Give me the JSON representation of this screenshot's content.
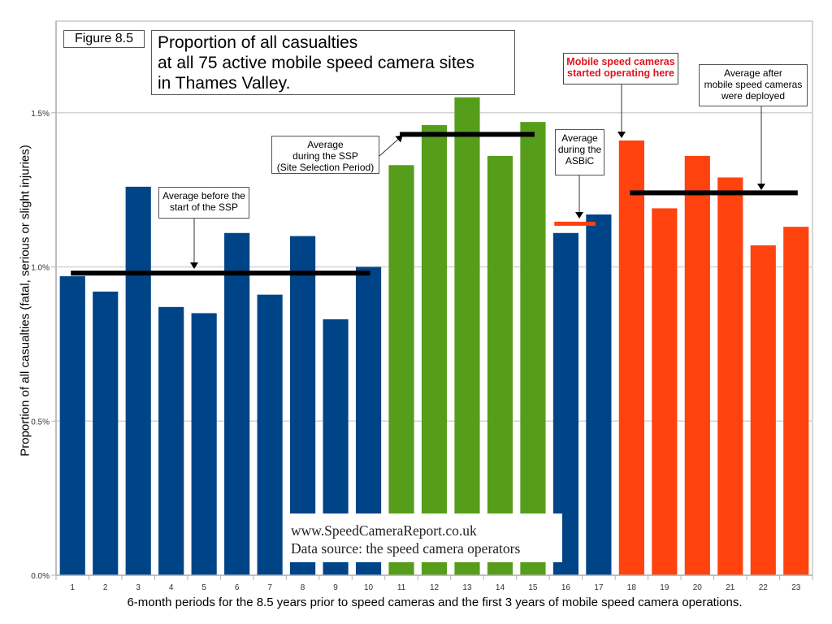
{
  "figure_label": "Figure 8.5",
  "title_lines": [
    "Proportion of all casualties",
    "at all 75 active mobile speed camera sites",
    "in Thames Valley."
  ],
  "watermark": {
    "line1": "www.SpeedCameraReport.co.uk",
    "line2": "Data source: the speed camera operators"
  },
  "annotations": {
    "before_ssp": [
      "Average before the",
      "start of the SSP"
    ],
    "during_ssp": [
      "Average",
      "during the SSP",
      "(Site Selection Period)"
    ],
    "during_asbic": [
      "Average",
      "during the",
      "ASBiC"
    ],
    "cameras_started": [
      "Mobile speed cameras",
      "started operating here"
    ],
    "after_deployment": [
      "Average after",
      "mobile speed cameras",
      "were deployed"
    ]
  },
  "colors": {
    "before": "#004488",
    "ssp": "#579d1c",
    "after": "#ff420e",
    "average_line": "#000000",
    "asbic_line": "#ff420e",
    "grid": "#d4d4d4",
    "axis": "#b3b3b3",
    "annotation_red": "#e0141e"
  },
  "chart_data": {
    "type": "bar",
    "title": "Proportion of all casualties at all 75 active mobile speed camera sites in Thames Valley.",
    "xlabel": "6-month periods for the 8.5 years prior to speed cameras and the first 3 years of mobile speed camera operations.",
    "ylabel": "Proportion of all casualties (fatal, serious or slight injuries)",
    "categories": [
      "1",
      "2",
      "3",
      "4",
      "5",
      "6",
      "7",
      "8",
      "9",
      "10",
      "11",
      "12",
      "13",
      "14",
      "15",
      "16",
      "17",
      "18",
      "19",
      "20",
      "21",
      "22",
      "23"
    ],
    "values": [
      0.97,
      0.92,
      1.26,
      0.87,
      0.85,
      1.11,
      0.91,
      1.1,
      0.83,
      1.0,
      1.33,
      1.46,
      1.55,
      1.36,
      1.47,
      1.11,
      1.17,
      1.41,
      1.19,
      1.36,
      1.29,
      1.07,
      1.13
    ],
    "value_units": "percent",
    "bar_groups": [
      "before",
      "before",
      "before",
      "before",
      "before",
      "before",
      "before",
      "before",
      "before",
      "before",
      "ssp",
      "ssp",
      "ssp",
      "ssp",
      "ssp",
      "before",
      "before",
      "after",
      "after",
      "after",
      "after",
      "after",
      "after"
    ],
    "ylim": [
      0,
      1.8
    ],
    "yticks": [
      0,
      0.5,
      1.0,
      1.5
    ],
    "ytick_labels": [
      "0.0%",
      "0.5%",
      "1.0%",
      "1.5%"
    ],
    "grid": true,
    "legend": "none",
    "average_lines": [
      {
        "name": "Average before the start of the SSP",
        "value": 0.98,
        "from_period": 1,
        "to_period": 10,
        "color_key": "average_line"
      },
      {
        "name": "Average during the SSP",
        "value": 1.43,
        "from_period": 11,
        "to_period": 15,
        "color_key": "average_line"
      },
      {
        "name": "Average during the ASBiC",
        "value": 1.14,
        "from_period": 16,
        "to_period": 17,
        "color_key": "asbic_line"
      },
      {
        "name": "Average after mobile speed cameras were deployed",
        "value": 1.24,
        "from_period": 18,
        "to_period": 23,
        "color_key": "average_line"
      }
    ]
  }
}
